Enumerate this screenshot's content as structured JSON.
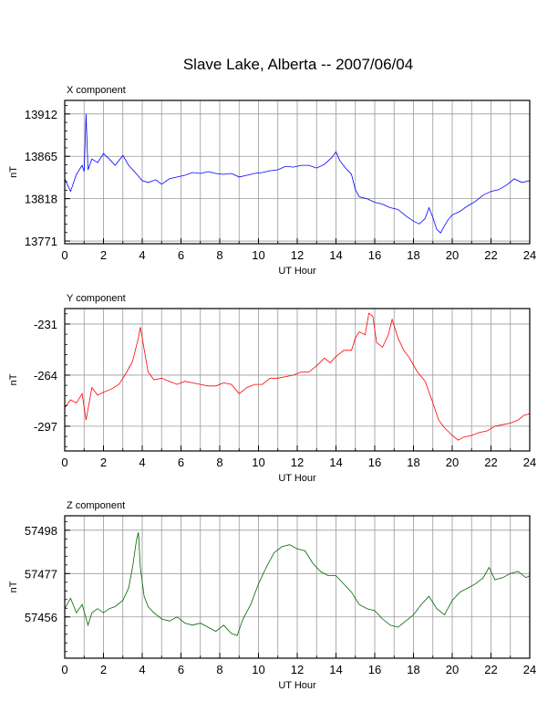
{
  "title": "Slave Lake, Alberta -- 2007/06/04",
  "chart_data": [
    {
      "type": "line",
      "panel_label": "X component",
      "xlabel": "UT Hour",
      "ylabel": "nT",
      "xlim": [
        0,
        24
      ],
      "ylim": [
        13768,
        13927
      ],
      "xticks": [
        0,
        2,
        4,
        6,
        8,
        10,
        12,
        14,
        16,
        18,
        20,
        22,
        24
      ],
      "xtick_labels": [
        "0",
        "2",
        "4",
        "6",
        "8",
        "10",
        "12",
        "14",
        "16",
        "18",
        "20",
        "22",
        "24"
      ],
      "yticks": [
        13771,
        13818,
        13865,
        13912
      ],
      "ytick_labels": [
        "13771",
        "13818",
        "13865",
        "13912"
      ],
      "grid": true,
      "color": "#0000ff",
      "series": [
        {
          "x": [
            0,
            0.3,
            0.6,
            0.9,
            1.0,
            1.1,
            1.2,
            1.4,
            1.7,
            2.0,
            2.3,
            2.6,
            3.0,
            3.3,
            3.6,
            4.0,
            4.3,
            4.7,
            5.0,
            5.4,
            5.8,
            6.2,
            6.6,
            7.0,
            7.4,
            7.8,
            8.2,
            8.6,
            9.0,
            9.4,
            9.8,
            10.2,
            10.6,
            11.0,
            11.4,
            11.8,
            12.2,
            12.6,
            13.0,
            13.4,
            13.8,
            14.0,
            14.2,
            14.5,
            14.8,
            15.0,
            15.2,
            15.6,
            16.0,
            16.4,
            16.8,
            17.2,
            17.6,
            18.0,
            18.3,
            18.6,
            18.8,
            19.0,
            19.2,
            19.4,
            19.6,
            19.8,
            20.0,
            20.4,
            20.8,
            21.2,
            21.6,
            22.0,
            22.4,
            22.8,
            23.2,
            23.6,
            24.0
          ],
          "y": [
            13840,
            13826,
            13845,
            13855,
            13848,
            13912,
            13850,
            13862,
            13858,
            13868,
            13862,
            13855,
            13866,
            13855,
            13848,
            13838,
            13836,
            13839,
            13834,
            13840,
            13842,
            13844,
            13847,
            13846,
            13848,
            13846,
            13845,
            13846,
            13842,
            13844,
            13846,
            13847,
            13849,
            13850,
            13854,
            13853,
            13855,
            13855,
            13852,
            13856,
            13864,
            13870,
            13860,
            13852,
            13845,
            13828,
            13820,
            13818,
            13814,
            13812,
            13808,
            13806,
            13799,
            13793,
            13790,
            13796,
            13808,
            13797,
            13784,
            13780,
            13788,
            13795,
            13800,
            13804,
            13810,
            13815,
            13822,
            13826,
            13828,
            13833,
            13840,
            13836,
            13838
          ]
        }
      ]
    },
    {
      "type": "line",
      "panel_label": "Y component",
      "xlabel": "UT Hour",
      "ylabel": "nT",
      "xlim": [
        0,
        24
      ],
      "ylim": [
        -313,
        -221
      ],
      "xticks": [
        0,
        2,
        4,
        6,
        8,
        10,
        12,
        14,
        16,
        18,
        20,
        22,
        24
      ],
      "xtick_labels": [
        "0",
        "2",
        "4",
        "6",
        "8",
        "10",
        "12",
        "14",
        "16",
        "18",
        "20",
        "22",
        "24"
      ],
      "yticks": [
        -231,
        -264,
        -297
      ],
      "ytick_labels": [
        "-231",
        "-264",
        "-297"
      ],
      "grid": true,
      "color": "#ff0000",
      "series": [
        {
          "x": [
            0,
            0.3,
            0.6,
            0.9,
            1.1,
            1.4,
            1.7,
            2.0,
            2.4,
            2.8,
            3.2,
            3.5,
            3.8,
            3.9,
            4.0,
            4.3,
            4.6,
            5.0,
            5.4,
            5.8,
            6.2,
            6.6,
            7.0,
            7.4,
            7.8,
            8.2,
            8.6,
            9.0,
            9.4,
            9.8,
            10.2,
            10.6,
            11.0,
            11.4,
            11.8,
            12.2,
            12.6,
            13.0,
            13.4,
            13.7,
            14.0,
            14.4,
            14.8,
            15.0,
            15.2,
            15.5,
            15.7,
            15.9,
            16.1,
            16.4,
            16.7,
            16.9,
            17.2,
            17.5,
            17.8,
            18.2,
            18.6,
            19.0,
            19.3,
            19.6,
            20.0,
            20.3,
            20.6,
            21.0,
            21.4,
            21.8,
            22.2,
            22.6,
            23.0,
            23.4,
            23.7,
            24.0
          ],
          "y": [
            -285,
            -280,
            -282,
            -276,
            -293,
            -272,
            -277,
            -275,
            -273,
            -270,
            -262,
            -255,
            -240,
            -233,
            -240,
            -262,
            -267,
            -266,
            -268,
            -270,
            -268,
            -269,
            -270,
            -271,
            -271,
            -269,
            -270,
            -276,
            -272,
            -270,
            -270,
            -266,
            -266,
            -265,
            -264,
            -262,
            -262,
            -258,
            -253,
            -256,
            -252,
            -248,
            -248,
            -240,
            -236,
            -238,
            -224,
            -226,
            -243,
            -246,
            -238,
            -228,
            -240,
            -248,
            -253,
            -262,
            -268,
            -282,
            -293,
            -298,
            -303,
            -306,
            -304,
            -303,
            -301,
            -300,
            -297,
            -296,
            -295,
            -293,
            -290,
            -289
          ]
        }
      ]
    },
    {
      "type": "line",
      "panel_label": "Z component",
      "xlabel": "UT Hour",
      "ylabel": "nT",
      "xlim": [
        0,
        24
      ],
      "ylim": [
        57436,
        57505
      ],
      "xticks": [
        0,
        2,
        4,
        6,
        8,
        10,
        12,
        14,
        16,
        18,
        20,
        22,
        24
      ],
      "xtick_labels": [
        "0",
        "2",
        "4",
        "6",
        "8",
        "10",
        "12",
        "14",
        "16",
        "18",
        "20",
        "22",
        "24"
      ],
      "yticks": [
        57498,
        57477,
        57456
      ],
      "ytick_labels": [
        "57498",
        "57477",
        "57456"
      ],
      "grid": true,
      "color": "#006600",
      "series": [
        {
          "x": [
            0,
            0.3,
            0.6,
            0.9,
            1.2,
            1.4,
            1.7,
            2.0,
            2.3,
            2.6,
            3.0,
            3.3,
            3.5,
            3.7,
            3.8,
            3.9,
            4.1,
            4.3,
            4.6,
            5.0,
            5.4,
            5.8,
            6.2,
            6.6,
            7.0,
            7.4,
            7.8,
            8.2,
            8.6,
            8.9,
            9.2,
            9.6,
            10.0,
            10.4,
            10.8,
            11.2,
            11.6,
            12.0,
            12.4,
            12.8,
            13.2,
            13.6,
            14.0,
            14.4,
            14.8,
            15.2,
            15.6,
            16.0,
            16.4,
            16.8,
            17.2,
            17.6,
            18.0,
            18.4,
            18.8,
            19.2,
            19.6,
            20.0,
            20.4,
            20.8,
            21.2,
            21.6,
            21.9,
            22.2,
            22.6,
            23.0,
            23.4,
            23.8,
            24.0
          ],
          "y": [
            57460,
            57465,
            57458,
            57462,
            57452,
            57458,
            57460,
            57458,
            57460,
            57461,
            57464,
            57470,
            57480,
            57493,
            57497,
            57480,
            57466,
            57461,
            57458,
            57455,
            57454,
            57456,
            57453,
            57452,
            57453,
            57451,
            57449,
            57452,
            57448,
            57447,
            57455,
            57462,
            57472,
            57480,
            57487,
            57490,
            57491,
            57489,
            57488,
            57482,
            57478,
            57476,
            57476,
            57472,
            57468,
            57462,
            57460,
            57459,
            57455,
            57452,
            57451,
            57454,
            57457,
            57462,
            57466,
            57460,
            57457,
            57464,
            57468,
            57470,
            57472,
            57475,
            57480,
            57474,
            57475,
            57477,
            57478,
            57475,
            57476
          ]
        }
      ]
    }
  ]
}
